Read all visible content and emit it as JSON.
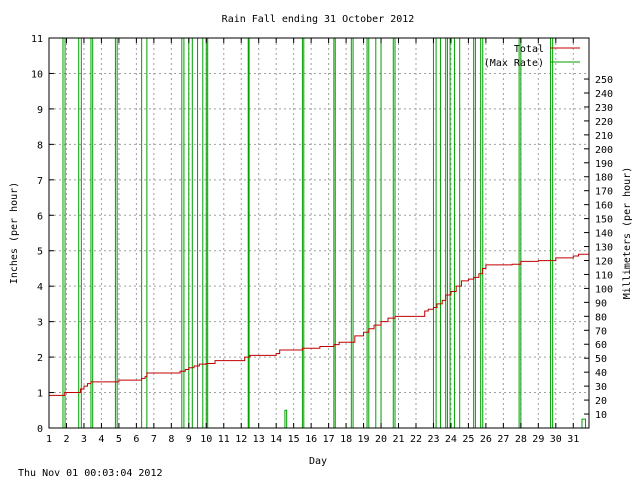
{
  "footer_timestamp": "Thu Nov 01 00:03:04 2012",
  "colors": {
    "total": "#c00000",
    "max_rate": "#00a000",
    "grid": "#a0a0a0"
  },
  "chart_data": {
    "type": "line",
    "title": "Rain Fall ending 31 October 2012",
    "xlabel": "Day",
    "ylabel": "Inches (per hour)",
    "y2label": "Millimeters (per hour)",
    "xlim": [
      1,
      31.9
    ],
    "ylim": [
      0,
      11
    ],
    "y2lim": [
      0,
      279.4
    ],
    "x_ticks": [
      1,
      2,
      3,
      4,
      5,
      6,
      7,
      8,
      9,
      10,
      11,
      12,
      13,
      14,
      15,
      16,
      17,
      18,
      19,
      20,
      21,
      22,
      23,
      24,
      25,
      26,
      27,
      28,
      29,
      30,
      31
    ],
    "y_ticks": [
      0,
      1,
      2,
      3,
      4,
      5,
      6,
      7,
      8,
      9,
      10,
      11
    ],
    "y2_ticks": [
      10,
      20,
      30,
      40,
      50,
      60,
      70,
      80,
      90,
      100,
      110,
      120,
      130,
      140,
      150,
      160,
      170,
      180,
      190,
      200,
      210,
      220,
      230,
      240,
      250
    ],
    "grid": true,
    "legend_position": "top-right",
    "series": [
      {
        "name": "Total",
        "color": "#c00000",
        "x": [
          1.0,
          1.8,
          1.9,
          2.4,
          2.8,
          3.0,
          3.2,
          3.4,
          4.0,
          4.8,
          5.0,
          6.0,
          6.3,
          6.5,
          6.6,
          7.0,
          8.0,
          8.5,
          8.8,
          9.0,
          9.3,
          9.6,
          10.0,
          10.5,
          12.0,
          12.2,
          12.5,
          13.0,
          14.0,
          14.2,
          15.0,
          15.5,
          16.0,
          16.5,
          17.0,
          17.3,
          17.6,
          18.0,
          18.5,
          19.0,
          19.3,
          19.6,
          20.0,
          20.4,
          20.8,
          21.0,
          22.0,
          22.5,
          22.7,
          23.0,
          23.2,
          23.5,
          23.7,
          24.0,
          24.3,
          24.6,
          25.0,
          25.3,
          25.6,
          25.8,
          26.0,
          27.0,
          27.5,
          28.0,
          29.0,
          29.8,
          30.0,
          31.0,
          31.3,
          31.9
        ],
        "y": [
          0.92,
          0.92,
          1.0,
          1.0,
          1.1,
          1.18,
          1.25,
          1.3,
          1.3,
          1.3,
          1.35,
          1.35,
          1.4,
          1.45,
          1.55,
          1.55,
          1.55,
          1.6,
          1.65,
          1.7,
          1.75,
          1.8,
          1.82,
          1.9,
          1.9,
          2.0,
          2.05,
          2.05,
          2.1,
          2.2,
          2.2,
          2.25,
          2.25,
          2.3,
          2.3,
          2.35,
          2.42,
          2.42,
          2.6,
          2.7,
          2.8,
          2.9,
          3.0,
          3.1,
          3.15,
          3.15,
          3.15,
          3.3,
          3.35,
          3.4,
          3.5,
          3.6,
          3.75,
          3.85,
          4.0,
          4.15,
          4.2,
          4.25,
          4.35,
          4.5,
          4.6,
          4.6,
          4.62,
          4.7,
          4.72,
          4.72,
          4.8,
          4.85,
          4.9,
          4.92
        ]
      },
      {
        "name": "(Max Rate)",
        "color": "#00a000",
        "spikes": [
          {
            "x": 1.8,
            "w": 0.12,
            "y": 11
          },
          {
            "x": 2.7,
            "w": 0.15,
            "y": 11
          },
          {
            "x": 3.4,
            "w": 0.1,
            "y": 11
          },
          {
            "x": 4.8,
            "w": 0.1,
            "y": 11
          },
          {
            "x": 6.3,
            "w": 0.3,
            "y": 11
          },
          {
            "x": 8.6,
            "w": 0.12,
            "y": 11
          },
          {
            "x": 9.0,
            "w": 0.2,
            "y": 11
          },
          {
            "x": 9.5,
            "w": 0.3,
            "y": 11
          },
          {
            "x": 10.0,
            "w": 0.08,
            "y": 11
          },
          {
            "x": 12.4,
            "w": 0.05,
            "y": 11
          },
          {
            "x": 14.5,
            "w": 0.1,
            "y": 0.5
          },
          {
            "x": 15.5,
            "w": 0.08,
            "y": 11
          },
          {
            "x": 17.3,
            "w": 0.08,
            "y": 11
          },
          {
            "x": 18.3,
            "w": 0.1,
            "y": 11
          },
          {
            "x": 19.2,
            "w": 0.1,
            "y": 11
          },
          {
            "x": 19.7,
            "w": 0.3,
            "y": 11
          },
          {
            "x": 20.7,
            "w": 0.1,
            "y": 11
          },
          {
            "x": 23.0,
            "w": 0.15,
            "y": 11
          },
          {
            "x": 23.4,
            "w": 0.3,
            "y": 11
          },
          {
            "x": 23.8,
            "w": 0.15,
            "y": 11
          },
          {
            "x": 24.2,
            "w": 0.3,
            "y": 11
          },
          {
            "x": 25.3,
            "w": 0.1,
            "y": 11
          },
          {
            "x": 25.7,
            "w": 0.12,
            "y": 11
          },
          {
            "x": 27.9,
            "w": 0.1,
            "y": 11
          },
          {
            "x": 29.7,
            "w": 0.12,
            "y": 11
          },
          {
            "x": 31.5,
            "w": 0.2,
            "y": 0.25
          }
        ]
      }
    ]
  }
}
